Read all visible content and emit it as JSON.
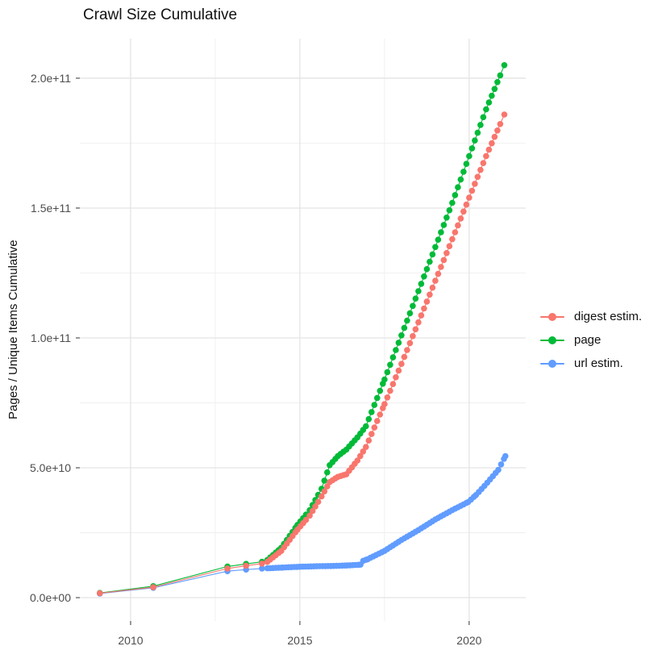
{
  "title": "Crawl Size Cumulative",
  "y_axis": {
    "label": "Pages / Unique Items Cumulative",
    "ticks": [
      {
        "value": 0,
        "label": "0.0e+00"
      },
      {
        "value": 50000000000.0,
        "label": "5.0e+10"
      },
      {
        "value": 100000000000.0,
        "label": "1.0e+11"
      },
      {
        "value": 150000000000.0,
        "label": "1.5e+11"
      },
      {
        "value": 200000000000.0,
        "label": "2.0e+11"
      }
    ],
    "minor_ticks": [
      25000000000.0,
      75000000000.0,
      125000000000.0,
      175000000000.0
    ]
  },
  "x_axis": {
    "ticks": [
      {
        "value": 2010,
        "label": "2010"
      },
      {
        "value": 2015,
        "label": "2015"
      },
      {
        "value": 2020,
        "label": "2020"
      }
    ],
    "minor_ticks": [
      2012.5,
      2017.5
    ]
  },
  "legend": {
    "position": "right",
    "items": [
      {
        "label": "digest estim.",
        "color": "#F8766D"
      },
      {
        "label": "page",
        "color": "#00BA38"
      },
      {
        "label": "url estim.",
        "color": "#619CFF"
      }
    ]
  },
  "colors": {
    "grid_major": "#e4e4e4",
    "grid_minor": "#efefef",
    "tick_mark": "#333333",
    "tick_label": "#4d4d4d"
  },
  "chart_data": {
    "type": "scatter",
    "style": "points connected by thin lines, monthly points form beaded curves",
    "title": "Crawl Size Cumulative",
    "xlabel": "",
    "ylabel": "Pages / Unique Items Cumulative",
    "xlim": [
      2008.5,
      2021.67
    ],
    "ylim": [
      -9000000000.0,
      215200000000.0
    ],
    "grid": true,
    "legend_position": "right",
    "point_spacing_years": 0.0833,
    "series": [
      {
        "name": "page",
        "color": "#00BA38",
        "dense_start": 2014.04,
        "points": [
          [
            2009.09,
            1800000000.0
          ],
          [
            2010.67,
            4400000000.0
          ],
          [
            2012.86,
            12000000000.0
          ],
          [
            2013.41,
            13000000000.0
          ],
          [
            2013.88,
            13800000000.0
          ],
          [
            2014.04,
            14500000000.0
          ],
          [
            2014.45,
            19200000000.0
          ],
          [
            2014.93,
            28000000000.0
          ],
          [
            2015.29,
            33700000000.0
          ],
          [
            2015.64,
            41900000000.0
          ],
          [
            2015.88,
            51000000000.0
          ],
          [
            2016.12,
            54500000000.0
          ],
          [
            2016.37,
            57000000000.0
          ],
          [
            2016.7,
            61700000000.0
          ],
          [
            2016.95,
            66000000000.0
          ],
          [
            2017.5,
            84000000000.0
          ],
          [
            2018.0,
            101000000000.0
          ],
          [
            2018.5,
            118000000000.0
          ],
          [
            2019.0,
            135000000000.0
          ],
          [
            2019.5,
            152000000000.0
          ],
          [
            2020.0,
            170000000000.0
          ],
          [
            2020.5,
            188000000000.0
          ],
          [
            2021.04,
            205000000000.0
          ]
        ]
      },
      {
        "name": "url estim.",
        "color": "#619CFF",
        "dense_start": 2014.04,
        "points": [
          [
            2009.09,
            1600000000.0
          ],
          [
            2010.67,
            3800000000.0
          ],
          [
            2012.86,
            10200000000.0
          ],
          [
            2013.41,
            10800000000.0
          ],
          [
            2013.88,
            11200000000.0
          ],
          [
            2014.04,
            11300000000.0
          ],
          [
            2014.5,
            11600000000.0
          ],
          [
            2015.0,
            11900000000.0
          ],
          [
            2015.5,
            12100000000.0
          ],
          [
            2016.0,
            12200000000.0
          ],
          [
            2016.4,
            12400000000.0
          ],
          [
            2016.79,
            12700000000.0
          ],
          [
            2016.87,
            14200000000.0
          ],
          [
            2017.0,
            14800000000.0
          ],
          [
            2017.5,
            18000000000.0
          ],
          [
            2018.0,
            22200000000.0
          ],
          [
            2018.5,
            26000000000.0
          ],
          [
            2019.0,
            30100000000.0
          ],
          [
            2019.5,
            33700000000.0
          ],
          [
            2019.97,
            36800000000.0
          ],
          [
            2020.2,
            39500000000.0
          ],
          [
            2020.45,
            43000000000.0
          ],
          [
            2020.86,
            49200000000.0
          ],
          [
            2021.07,
            54500000000.0
          ]
        ]
      },
      {
        "name": "digest estim.",
        "color": "#F8766D",
        "dense_start": 2014.04,
        "points": [
          [
            2009.09,
            1700000000.0
          ],
          [
            2010.67,
            4000000000.0
          ],
          [
            2012.86,
            11200000000.0
          ],
          [
            2013.41,
            12300000000.0
          ],
          [
            2013.88,
            13100000000.0
          ],
          [
            2014.04,
            13800000000.0
          ],
          [
            2014.45,
            18000000000.0
          ],
          [
            2014.93,
            26200000000.0
          ],
          [
            2015.29,
            31600000000.0
          ],
          [
            2015.64,
            39000000000.0
          ],
          [
            2015.88,
            44500000000.0
          ],
          [
            2016.12,
            46500000000.0
          ],
          [
            2016.37,
            47500000000.0
          ],
          [
            2016.7,
            52800000000.0
          ],
          [
            2016.95,
            58000000000.0
          ],
          [
            2017.5,
            74500000000.0
          ],
          [
            2018.0,
            90000000000.0
          ],
          [
            2018.5,
            106000000000.0
          ],
          [
            2019.0,
            122000000000.0
          ],
          [
            2019.5,
            138000000000.0
          ],
          [
            2020.0,
            154000000000.0
          ],
          [
            2020.5,
            170000000000.0
          ],
          [
            2021.04,
            186000000000.0
          ]
        ]
      }
    ]
  }
}
